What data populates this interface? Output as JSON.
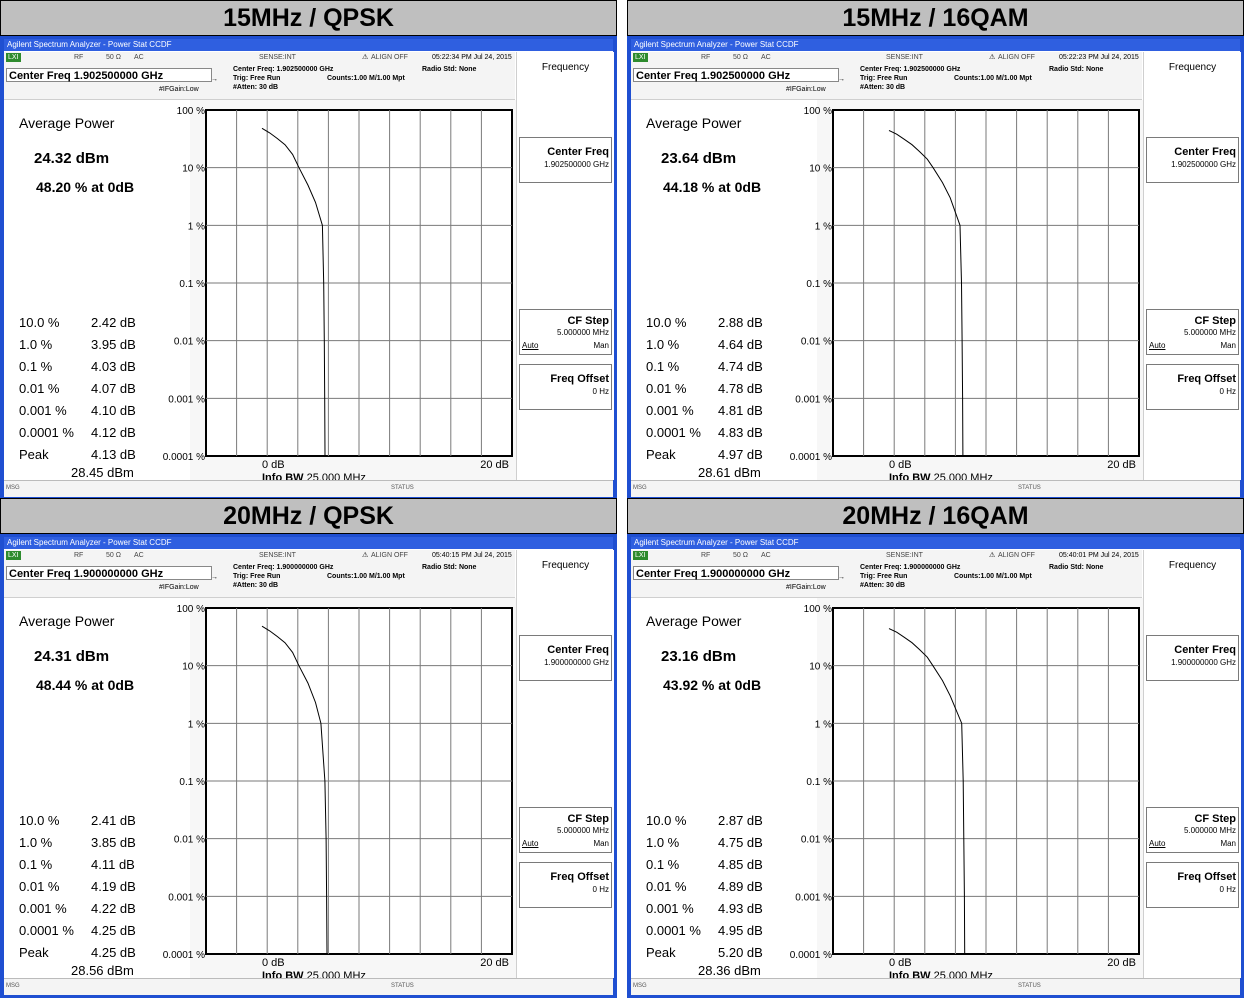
{
  "panels": [
    {
      "title": "15MHz / QPSK",
      "window_title": "Agilent Spectrum Analyzer - Power Stat CCDF",
      "rf": "RF",
      "ohm": "50 Ω",
      "ac": "AC",
      "sense": "SENSE:INT",
      "align": "ALIGN OFF",
      "timestamp": "05:22:34 PM Jul 24, 2015",
      "center_freq_label": "Center Freq 1.902500000 GHz",
      "info_center": "Center Freq: 1.902500000 GHz",
      "trig": "Trig: Free Run",
      "radio_std": "Radio Std: None",
      "counts": "Counts:1.00 M/1.00 Mpt",
      "ifgain": "#IFGain:Low",
      "atten": "#Atten: 30 dB",
      "avg_title": "Average Power",
      "avg_power": "24.32 dBm",
      "avg_pct": "48.20 % at 0dB",
      "rows": [
        {
          "label": "10.0 %",
          "value": "2.42 dB"
        },
        {
          "label": "1.0 %",
          "value": "3.95 dB"
        },
        {
          "label": "0.1 %",
          "value": "4.03 dB"
        },
        {
          "label": "0.01 %",
          "value": "4.07 dB"
        },
        {
          "label": "0.001 %",
          "value": "4.10 dB"
        },
        {
          "label": "0.0001 %",
          "value": "4.12 dB"
        },
        {
          "label": "Peak",
          "value": "4.13 dB"
        }
      ],
      "peak_dbm": "28.45 dBm",
      "y_ticks": [
        "100 %",
        "10 %",
        "1 %",
        "0.1 %",
        "0.01 %",
        "0.001 %",
        "0.0001 %"
      ],
      "x_start": "0 dB",
      "x_end": "20 dB",
      "info_bw_label": "Info BW",
      "info_bw_value": "25.000 MHz",
      "curve_db": [
        0,
        0.5,
        1.0,
        1.5,
        2.0,
        2.42,
        3.0,
        3.5,
        3.95,
        4.03,
        4.07,
        4.1,
        4.12,
        4.13
      ],
      "curve_pct": [
        48.2,
        40,
        32,
        25,
        17,
        10,
        5.0,
        2.5,
        1.0,
        0.1,
        0.01,
        0.001,
        0.0001,
        5e-05
      ],
      "rp_title": "Frequency",
      "rp_center_label": "Center Freq",
      "rp_center_value": "1.902500000 GHz",
      "rp_cfstep_label": "CF Step",
      "rp_cfstep_value": "5.000000 MHz",
      "rp_auto": "Auto",
      "rp_man": "Man",
      "rp_offset_label": "Freq Offset",
      "rp_offset_value": "0 Hz",
      "msg": "MSG",
      "status": "STATUS"
    },
    {
      "title": "15MHz / 16QAM",
      "window_title": "Agilent Spectrum Analyzer - Power Stat CCDF",
      "rf": "RF",
      "ohm": "50 Ω",
      "ac": "AC",
      "sense": "SENSE:INT",
      "align": "ALIGN OFF",
      "timestamp": "05:22:23 PM Jul 24, 2015",
      "center_freq_label": "Center Freq 1.902500000 GHz",
      "info_center": "Center Freq: 1.902500000 GHz",
      "trig": "Trig: Free Run",
      "radio_std": "Radio Std: None",
      "counts": "Counts:1.00 M/1.00 Mpt",
      "ifgain": "#IFGain:Low",
      "atten": "#Atten: 30 dB",
      "avg_title": "Average Power",
      "avg_power": "23.64 dBm",
      "avg_pct": "44.18 % at 0dB",
      "rows": [
        {
          "label": "10.0 %",
          "value": "2.88 dB"
        },
        {
          "label": "1.0 %",
          "value": "4.64 dB"
        },
        {
          "label": "0.1 %",
          "value": "4.74 dB"
        },
        {
          "label": "0.01 %",
          "value": "4.78 dB"
        },
        {
          "label": "0.001 %",
          "value": "4.81 dB"
        },
        {
          "label": "0.0001 %",
          "value": "4.83 dB"
        },
        {
          "label": "Peak",
          "value": "4.97 dB"
        }
      ],
      "peak_dbm": "28.61 dBm",
      "y_ticks": [
        "100 %",
        "10 %",
        "1 %",
        "0.1 %",
        "0.01 %",
        "0.001 %",
        "0.0001 %"
      ],
      "x_start": "0 dB",
      "x_end": "20 dB",
      "info_bw_label": "Info BW",
      "info_bw_value": "25.000 MHz",
      "curve_db": [
        0,
        0.5,
        1.0,
        1.5,
        2.0,
        2.5,
        2.88,
        3.5,
        4.0,
        4.64,
        4.74,
        4.78,
        4.81,
        4.83,
        4.97
      ],
      "curve_pct": [
        44.18,
        38,
        31,
        25,
        19,
        14,
        10,
        5.5,
        3.0,
        1.0,
        0.1,
        0.01,
        0.001,
        0.0001,
        5e-05
      ],
      "rp_title": "Frequency",
      "rp_center_label": "Center Freq",
      "rp_center_value": "1.902500000 GHz",
      "rp_cfstep_label": "CF Step",
      "rp_cfstep_value": "5.000000 MHz",
      "rp_auto": "Auto",
      "rp_man": "Man",
      "rp_offset_label": "Freq Offset",
      "rp_offset_value": "0 Hz",
      "msg": "MSG",
      "status": "STATUS"
    },
    {
      "title": "20MHz / QPSK",
      "window_title": "Agilent Spectrum Analyzer - Power Stat CCDF",
      "rf": "RF",
      "ohm": "50 Ω",
      "ac": "AC",
      "sense": "SENSE:INT",
      "align": "ALIGN OFF",
      "timestamp": "05:40:15 PM Jul 24, 2015",
      "center_freq_label": "Center Freq 1.900000000 GHz",
      "info_center": "Center Freq: 1.900000000 GHz",
      "trig": "Trig: Free Run",
      "radio_std": "Radio Std: None",
      "counts": "Counts:1.00 M/1.00 Mpt",
      "ifgain": "#IFGain:Low",
      "atten": "#Atten: 30 dB",
      "avg_title": "Average Power",
      "avg_power": "24.31 dBm",
      "avg_pct": "48.44 % at 0dB",
      "rows": [
        {
          "label": "10.0 %",
          "value": "2.41 dB"
        },
        {
          "label": "1.0 %",
          "value": "3.85 dB"
        },
        {
          "label": "0.1 %",
          "value": "4.11 dB"
        },
        {
          "label": "0.01 %",
          "value": "4.19 dB"
        },
        {
          "label": "0.001 %",
          "value": "4.22 dB"
        },
        {
          "label": "0.0001 %",
          "value": "4.25 dB"
        },
        {
          "label": "Peak",
          "value": "4.25 dB"
        }
      ],
      "peak_dbm": "28.56 dBm",
      "y_ticks": [
        "100 %",
        "10 %",
        "1 %",
        "0.1 %",
        "0.01 %",
        "0.001 %",
        "0.0001 %"
      ],
      "x_start": "0 dB",
      "x_end": "20 dB",
      "info_bw_label": "Info BW",
      "info_bw_value": "25.000 MHz",
      "curve_db": [
        0,
        0.5,
        1.0,
        1.5,
        2.0,
        2.41,
        3.0,
        3.5,
        3.85,
        4.11,
        4.19,
        4.22,
        4.25,
        4.25
      ],
      "curve_pct": [
        48.44,
        40,
        32,
        25,
        17,
        10,
        5.0,
        2.3,
        1.0,
        0.1,
        0.01,
        0.001,
        0.0001,
        5e-05
      ],
      "rp_title": "Frequency",
      "rp_center_label": "Center Freq",
      "rp_center_value": "1.900000000 GHz",
      "rp_cfstep_label": "CF Step",
      "rp_cfstep_value": "5.000000 MHz",
      "rp_auto": "Auto",
      "rp_man": "Man",
      "rp_offset_label": "Freq Offset",
      "rp_offset_value": "0 Hz",
      "msg": "MSG",
      "status": "STATUS"
    },
    {
      "title": "20MHz / 16QAM",
      "window_title": "Agilent Spectrum Analyzer - Power Stat CCDF",
      "rf": "RF",
      "ohm": "50 Ω",
      "ac": "AC",
      "sense": "SENSE:INT",
      "align": "ALIGN OFF",
      "timestamp": "05:40:01 PM Jul 24, 2015",
      "center_freq_label": "Center Freq 1.900000000 GHz",
      "info_center": "Center Freq: 1.900000000 GHz",
      "trig": "Trig: Free Run",
      "radio_std": "Radio Std: None",
      "counts": "Counts:1.00 M/1.00 Mpt",
      "ifgain": "#IFGain:Low",
      "atten": "#Atten: 30 dB",
      "avg_title": "Average Power",
      "avg_power": "23.16 dBm",
      "avg_pct": "43.92 % at 0dB",
      "rows": [
        {
          "label": "10.0 %",
          "value": "2.87 dB"
        },
        {
          "label": "1.0 %",
          "value": "4.75 dB"
        },
        {
          "label": "0.1 %",
          "value": "4.85 dB"
        },
        {
          "label": "0.01 %",
          "value": "4.89 dB"
        },
        {
          "label": "0.001 %",
          "value": "4.93 dB"
        },
        {
          "label": "0.0001 %",
          "value": "4.95 dB"
        },
        {
          "label": "Peak",
          "value": "5.20 dB"
        }
      ],
      "peak_dbm": "28.36 dBm",
      "y_ticks": [
        "100 %",
        "10 %",
        "1 %",
        "0.1 %",
        "0.01 %",
        "0.001 %",
        "0.0001 %"
      ],
      "x_start": "0 dB",
      "x_end": "20 dB",
      "info_bw_label": "Info BW",
      "info_bw_value": "25.000 MHz",
      "curve_db": [
        0,
        0.5,
        1.0,
        1.5,
        2.0,
        2.5,
        2.87,
        3.5,
        4.0,
        4.75,
        4.85,
        4.89,
        4.93,
        4.95,
        5.2
      ],
      "curve_pct": [
        43.92,
        38,
        31,
        25,
        19,
        14,
        10,
        5.5,
        3.0,
        1.0,
        0.1,
        0.01,
        0.001,
        0.0001,
        5e-05
      ],
      "rp_title": "Frequency",
      "rp_center_label": "Center Freq",
      "rp_center_value": "1.900000000 GHz",
      "rp_cfstep_label": "CF Step",
      "rp_cfstep_value": "5.000000 MHz",
      "rp_auto": "Auto",
      "rp_man": "Man",
      "rp_offset_label": "Freq Offset",
      "rp_offset_value": "0 Hz",
      "msg": "MSG",
      "status": "STATUS"
    }
  ],
  "colors": {
    "window_border": "#1f4fd1",
    "title_bar": "#bfbfbf",
    "trace": "#000000"
  }
}
